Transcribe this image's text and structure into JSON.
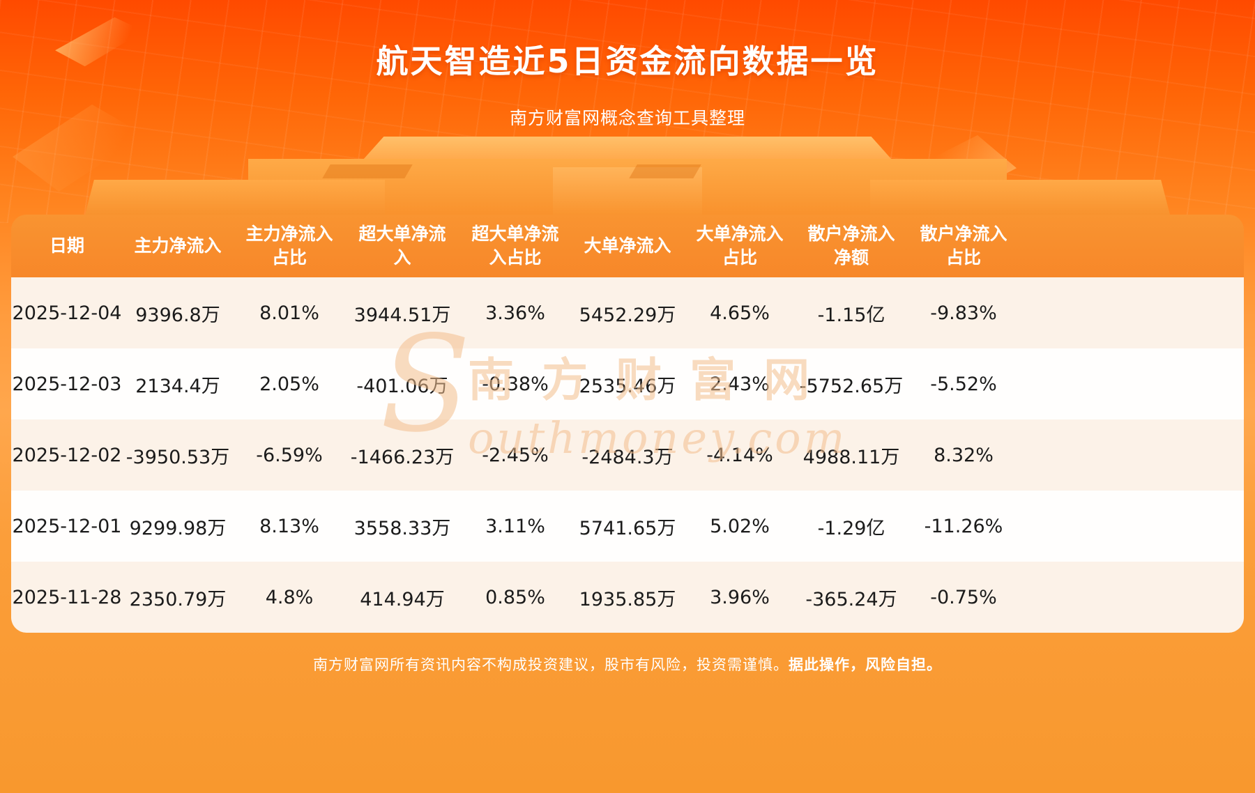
{
  "page": {
    "title": "航天智造近5日资金流向数据一览",
    "subtitle": "南方财富网概念查询工具整理",
    "disclaimer_main": "南方财富网所有资讯内容不构成投资建议，股市有风险，投资需谨慎。",
    "disclaimer_bold": "据此操作，风险自担。"
  },
  "watermark": {
    "initial": "S",
    "cn": "南方财富网",
    "en": "outhmoney.com"
  },
  "table": {
    "columns": [
      "日期",
      "主力净流入",
      "主力净流入占比",
      "超大单净流入",
      "超大单净流入占比",
      "大单净流入",
      "大单净流入占比",
      "散户净流入净额",
      "散户净流入占比"
    ],
    "rows": [
      [
        "2025-12-04",
        "9396.8万",
        "8.01%",
        "3944.51万",
        "3.36%",
        "5452.29万",
        "4.65%",
        "-1.15亿",
        "-9.83%"
      ],
      [
        "2025-12-03",
        "2134.4万",
        "2.05%",
        "-401.06万",
        "-0.38%",
        "2535.46万",
        "2.43%",
        "-5752.65万",
        "-5.52%"
      ],
      [
        "2025-12-02",
        "-3950.53万",
        "-6.59%",
        "-1466.23万",
        "-2.45%",
        "-2484.3万",
        "-4.14%",
        "4988.11万",
        "8.32%"
      ],
      [
        "2025-12-01",
        "9299.98万",
        "8.13%",
        "3558.33万",
        "3.11%",
        "5741.65万",
        "5.02%",
        "-1.29亿",
        "-11.26%"
      ],
      [
        "2025-11-28",
        "2350.79万",
        "4.8%",
        "414.94万",
        "0.85%",
        "1935.85万",
        "3.96%",
        "-365.24万",
        "-0.75%"
      ]
    ]
  },
  "chart_data": {
    "type": "table",
    "title": "航天智造近5日资金流向数据一览",
    "subtitle": "南方财富网概念查询工具整理",
    "columns": [
      "日期",
      "主力净流入",
      "主力净流入占比",
      "超大单净流入",
      "超大单净流入占比",
      "大单净流入",
      "大单净流入占比",
      "散户净流入净额",
      "散户净流入占比"
    ],
    "rows": [
      [
        "2025-12-04",
        "9396.8万",
        "8.01%",
        "3944.51万",
        "3.36%",
        "5452.29万",
        "4.65%",
        "-1.15亿",
        "-9.83%"
      ],
      [
        "2025-12-03",
        "2134.4万",
        "2.05%",
        "-401.06万",
        "-0.38%",
        "2535.46万",
        "2.43%",
        "-5752.65万",
        "-5.52%"
      ],
      [
        "2025-12-02",
        "-3950.53万",
        "-6.59%",
        "-1466.23万",
        "-2.45%",
        "-2484.3万",
        "-4.14%",
        "4988.11万",
        "8.32%"
      ],
      [
        "2025-12-01",
        "9299.98万",
        "8.13%",
        "3558.33万",
        "3.11%",
        "5741.65万",
        "5.02%",
        "-1.29亿",
        "-11.26%"
      ],
      [
        "2025-11-28",
        "2350.79万",
        "4.8%",
        "414.94万",
        "0.85%",
        "1935.85万",
        "3.96%",
        "-365.24万",
        "-0.75%"
      ]
    ]
  },
  "colors": {
    "bg_top": "#ff4a00",
    "bg_bottom": "#f8982e",
    "table_header": "#f8892c",
    "row_cream": "#fcf2e8",
    "row_white": "#fffefd",
    "cell_text": "#1b1b1b",
    "title_text": "#ffffff",
    "watermark": "#f3be8c"
  }
}
